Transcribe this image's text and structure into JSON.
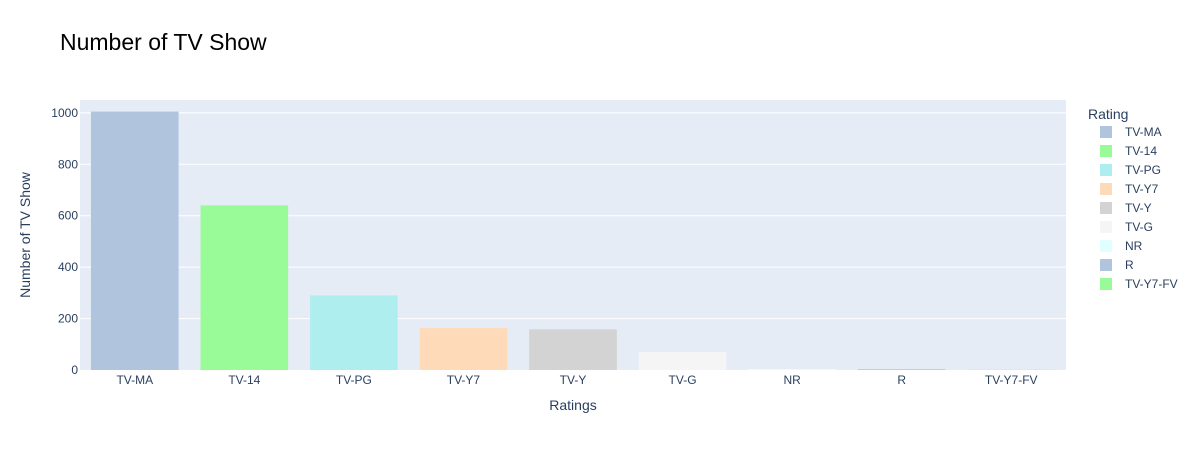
{
  "chart_data": {
    "type": "bar",
    "title": "Number of TV Show",
    "xlabel": "Ratings",
    "ylabel": "Number of TV Show",
    "ylim": [
      0,
      1050
    ],
    "yticks": [
      0,
      200,
      400,
      600,
      800,
      1000
    ],
    "grid": true,
    "legend": {
      "title": "Rating",
      "placement": "right"
    },
    "categories": [
      "TV-MA",
      "TV-14",
      "TV-PG",
      "TV-Y7",
      "TV-Y",
      "TV-G",
      "NR",
      "R",
      "TV-Y7-FV"
    ],
    "values": [
      1005,
      640,
      290,
      163,
      158,
      70,
      4,
      3,
      1
    ],
    "colors": [
      "#b0c4de",
      "#98fb98",
      "#afeeee",
      "#ffdab9",
      "#d3d3d3",
      "#f5f5f5",
      "#e0ffff",
      "#b0c4de",
      "#98fb98"
    ],
    "plot_background": "#e5ecf6"
  }
}
